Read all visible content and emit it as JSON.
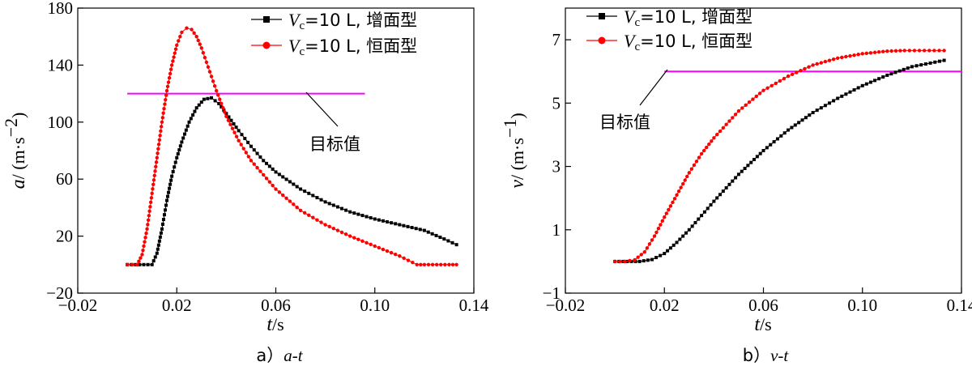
{
  "figure": {
    "caption_a_prefix": "a）",
    "caption_a_italic": "a-t",
    "caption_b_prefix": "b）",
    "caption_b_italic": "v-t",
    "target_label": "目标值"
  },
  "legend": {
    "var_main": "V",
    "var_sub": "c",
    "series_1_suffix": "=10 L, 增面型",
    "series_2_suffix": "=10 L, 恒面型"
  },
  "colors": {
    "series_1": "#000000",
    "series_2": "#ff0000",
    "target": "#ff00ff"
  },
  "chart_data": [
    {
      "type": "line",
      "xlabel_var": "t",
      "xlabel_unit": "/s",
      "ylabel_var": "a",
      "ylabel_unit": "/ (m·s",
      "ylabel_unit_exp": "−2",
      "ylabel_unit_close": ")",
      "xlim": [
        -0.02,
        0.14
      ],
      "ylim": [
        -20,
        180
      ],
      "x_ticks": [
        -0.02,
        0.02,
        0.06,
        0.1,
        0.14
      ],
      "x_tick_labels": [
        "−0.02",
        "0.02",
        "0.06",
        "0.10",
        "0.14"
      ],
      "y_ticks": [
        -20,
        20,
        60,
        100,
        140,
        180
      ],
      "y_tick_labels": [
        "−20",
        "20",
        "60",
        "100",
        "140",
        "180"
      ],
      "target_value": 120,
      "target_x_range": [
        0.0,
        0.096
      ],
      "series": [
        {
          "name_key": "series_1",
          "x": [
            0.0,
            0.01,
            0.012,
            0.014,
            0.016,
            0.018,
            0.02,
            0.022,
            0.025,
            0.028,
            0.031,
            0.034,
            0.037,
            0.04,
            0.045,
            0.05,
            0.055,
            0.06,
            0.07,
            0.08,
            0.09,
            0.1,
            0.11,
            0.12,
            0.128,
            0.133
          ],
          "y": [
            0,
            0,
            8,
            25,
            45,
            62,
            75,
            86,
            100,
            110,
            116,
            117,
            113,
            106,
            94,
            83,
            73,
            65,
            53,
            44,
            37,
            32,
            28,
            24,
            18,
            14
          ]
        },
        {
          "name_key": "series_2",
          "x": [
            0.0,
            0.004,
            0.006,
            0.008,
            0.01,
            0.012,
            0.014,
            0.016,
            0.018,
            0.02,
            0.022,
            0.024,
            0.026,
            0.028,
            0.03,
            0.032,
            0.034,
            0.036,
            0.04,
            0.045,
            0.05,
            0.06,
            0.07,
            0.08,
            0.09,
            0.1,
            0.11,
            0.117,
            0.12,
            0.13,
            0.133
          ],
          "y": [
            0,
            0,
            7,
            25,
            50,
            75,
            100,
            122,
            140,
            154,
            163,
            166,
            165,
            160,
            152,
            142,
            132,
            122,
            104,
            87,
            73,
            53,
            38,
            28,
            20,
            13,
            6,
            0,
            0,
            0,
            0
          ]
        }
      ]
    },
    {
      "type": "line",
      "xlabel_var": "t",
      "xlabel_unit": "/s",
      "ylabel_var": "v",
      "ylabel_unit": "/ (m·s",
      "ylabel_unit_exp": "−1",
      "ylabel_unit_close": ")",
      "xlim": [
        -0.02,
        0.14
      ],
      "ylim": [
        -1,
        8
      ],
      "x_ticks": [
        -0.02,
        0.02,
        0.06,
        0.1,
        0.14
      ],
      "x_tick_labels": [
        "−0.02",
        "0.02",
        "0.06",
        "0.10",
        "0.14"
      ],
      "y_ticks": [
        -1,
        1,
        3,
        5,
        7
      ],
      "y_tick_labels": [
        "−1",
        "1",
        "3",
        "5",
        "7"
      ],
      "target_value": 6,
      "target_x_range": [
        0.02,
        0.14
      ],
      "series": [
        {
          "name_key": "series_1",
          "x": [
            0.0,
            0.01,
            0.015,
            0.02,
            0.025,
            0.03,
            0.035,
            0.04,
            0.05,
            0.06,
            0.07,
            0.08,
            0.09,
            0.1,
            0.11,
            0.12,
            0.133
          ],
          "y": [
            0,
            0,
            0.06,
            0.25,
            0.6,
            1.0,
            1.45,
            1.9,
            2.75,
            3.5,
            4.15,
            4.7,
            5.15,
            5.55,
            5.88,
            6.15,
            6.35
          ]
        },
        {
          "name_key": "series_2",
          "x": [
            0.0,
            0.004,
            0.008,
            0.012,
            0.016,
            0.02,
            0.025,
            0.03,
            0.035,
            0.04,
            0.05,
            0.06,
            0.07,
            0.08,
            0.09,
            0.1,
            0.11,
            0.117,
            0.125,
            0.133
          ],
          "y": [
            0,
            0,
            0.05,
            0.3,
            0.8,
            1.4,
            2.1,
            2.8,
            3.4,
            3.9,
            4.75,
            5.4,
            5.85,
            6.2,
            6.42,
            6.56,
            6.64,
            6.66,
            6.66,
            6.66
          ]
        }
      ]
    }
  ]
}
